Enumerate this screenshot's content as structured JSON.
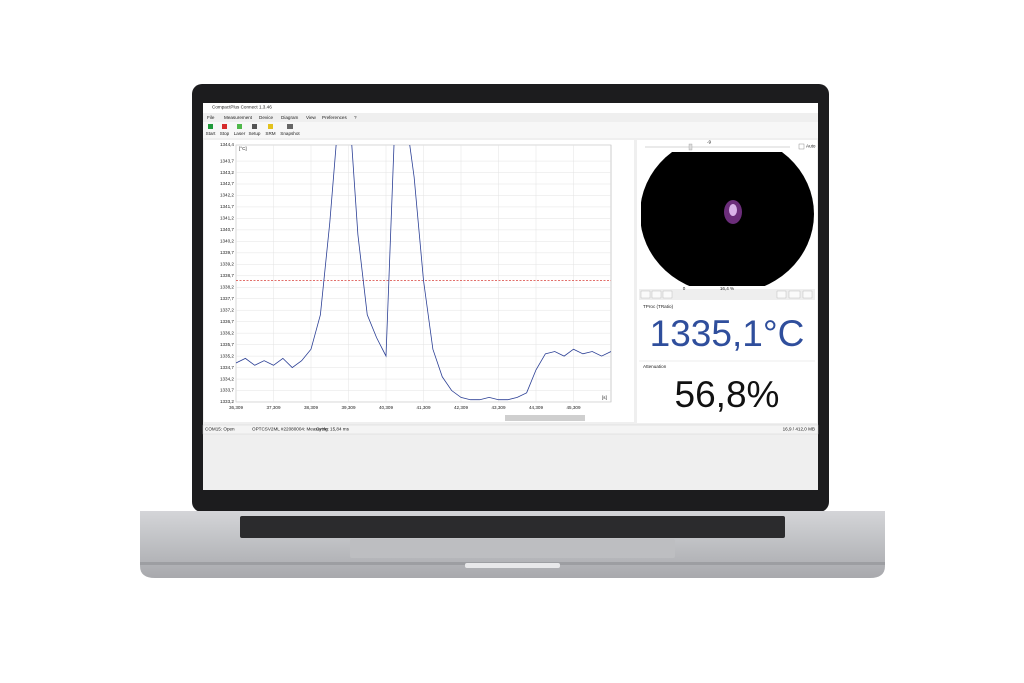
{
  "window": {
    "title": "CompactPlus Connect 1.3.46"
  },
  "menu": [
    "File",
    "Measurement",
    "Device",
    "Diagram",
    "View",
    "Preferences",
    "?"
  ],
  "toolbar": [
    "Start",
    "Stop",
    "Laser",
    "Setup",
    "SRM",
    "Snapshot"
  ],
  "plot": {
    "y_unit": "[°C]",
    "x_unit": "[s]",
    "ylim": [
      1333.2,
      1344.4
    ],
    "yticks": [
      {
        "value": 1344.4,
        "label": "1344,4"
      },
      {
        "value": 1343.7,
        "label": "1343,7"
      },
      {
        "value": 1343.2,
        "label": "1343,2"
      },
      {
        "value": 1342.7,
        "label": "1342,7"
      },
      {
        "value": 1342.2,
        "label": "1342,2"
      },
      {
        "value": 1341.7,
        "label": "1341,7"
      },
      {
        "value": 1341.2,
        "label": "1341,2"
      },
      {
        "value": 1340.7,
        "label": "1340,7"
      },
      {
        "value": 1340.2,
        "label": "1340,2"
      },
      {
        "value": 1339.7,
        "label": "1339,7"
      },
      {
        "value": 1339.2,
        "label": "1339,2"
      },
      {
        "value": 1338.7,
        "label": "1338,7"
      },
      {
        "value": 1338.2,
        "label": "1338,2"
      },
      {
        "value": 1337.7,
        "label": "1337,7"
      },
      {
        "value": 1337.2,
        "label": "1337,2"
      },
      {
        "value": 1336.7,
        "label": "1336,7"
      },
      {
        "value": 1336.2,
        "label": "1336,2"
      },
      {
        "value": 1335.7,
        "label": "1335,7"
      },
      {
        "value": 1335.2,
        "label": "1335,2"
      },
      {
        "value": 1334.7,
        "label": "1334,7"
      },
      {
        "value": 1334.2,
        "label": "1334,2"
      },
      {
        "value": 1333.7,
        "label": "1333,7"
      },
      {
        "value": 1333.2,
        "label": "1333,2"
      }
    ],
    "xlim": [
      36.309,
      46.309
    ],
    "xticks": [
      {
        "value": 36.309,
        "label": "36,309"
      },
      {
        "value": 37.309,
        "label": "37,309"
      },
      {
        "value": 38.309,
        "label": "38,309"
      },
      {
        "value": 39.309,
        "label": "39,309"
      },
      {
        "value": 40.309,
        "label": "40,309"
      },
      {
        "value": 41.309,
        "label": "41,309"
      },
      {
        "value": 42.309,
        "label": "42,309"
      },
      {
        "value": 43.309,
        "label": "43,309"
      },
      {
        "value": 44.309,
        "label": "44,309"
      },
      {
        "value": 45.309,
        "label": "45,309"
      }
    ],
    "x": [
      36.309,
      36.559,
      36.809,
      37.059,
      37.309,
      37.559,
      37.809,
      38.059,
      38.309,
      38.559,
      38.809,
      39.059,
      39.309,
      39.559,
      39.809,
      40.059,
      40.309,
      40.559,
      40.809,
      41.059,
      41.309,
      41.559,
      41.809,
      42.059,
      42.309,
      42.559,
      42.809,
      43.059,
      43.309,
      43.559,
      43.809,
      44.059,
      44.309,
      44.559,
      44.809,
      45.059,
      45.309,
      45.559,
      45.809,
      46.059,
      46.309
    ],
    "values": [
      1334.9,
      1335.1,
      1334.8,
      1335.0,
      1334.8,
      1335.1,
      1334.7,
      1335.0,
      1335.5,
      1337.0,
      1341.0,
      1346.0,
      1346.5,
      1340.5,
      1337.0,
      1336.0,
      1335.2,
      1346.0,
      1346.0,
      1343.0,
      1338.5,
      1335.5,
      1334.3,
      1333.7,
      1333.4,
      1333.3,
      1333.3,
      1333.4,
      1333.3,
      1333.3,
      1333.4,
      1333.6,
      1334.6,
      1335.3,
      1335.4,
      1335.2,
      1335.5,
      1335.3,
      1335.4,
      1335.2,
      1335.4
    ],
    "line_color": "#2b3f95",
    "threshold": 1338.5,
    "threshold_color": "#d9403a",
    "grid": true
  },
  "camera": {
    "brightness": -9,
    "auto": "Auto",
    "position": 0,
    "progress": "16,4 %"
  },
  "readouts": [
    {
      "label": "TProc (TRatio)",
      "value": "1335,1°C",
      "color": "#2f4e9c"
    },
    {
      "label": "Attenuation",
      "value": "56,8%",
      "color": "#111111"
    }
  ],
  "status": [
    "COM15: Open",
    "OPTCSV2ML #22080004: Measuring",
    "Cycle: 15,84 ms",
    "16,9 / 412,0 MB"
  ]
}
